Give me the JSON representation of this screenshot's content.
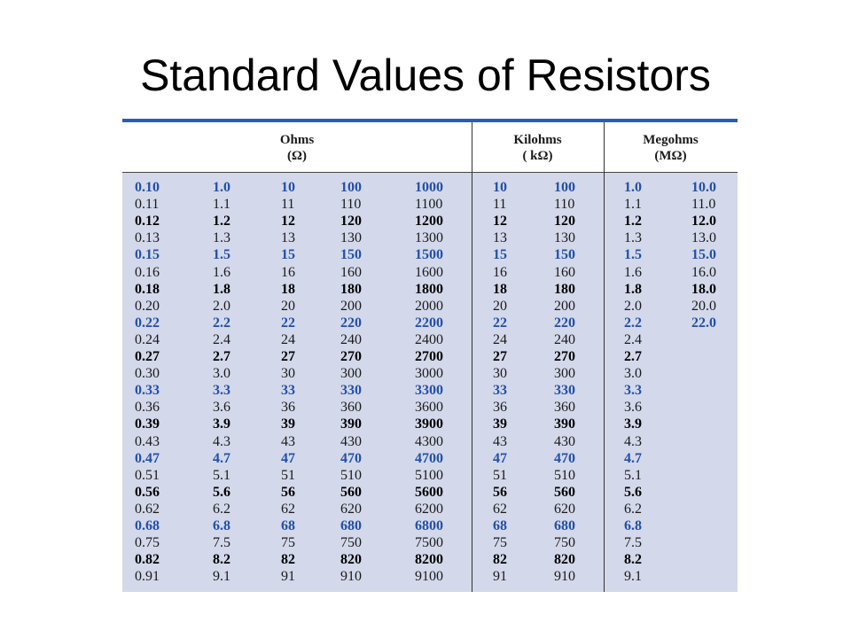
{
  "slide": {
    "title": "Standard Values of Resistors"
  },
  "table": {
    "headers": [
      {
        "name": "Ohms",
        "unit": "(Ω)"
      },
      {
        "name": "Kilohms",
        "unit": "(  kΩ)"
      },
      {
        "name": "Megohms",
        "unit": "(MΩ)"
      }
    ],
    "row_styles": [
      "blue",
      "plain",
      "bold",
      "plain",
      "blue",
      "plain",
      "bold",
      "plain",
      "blue",
      "plain",
      "bold",
      "plain",
      "blue",
      "plain",
      "bold",
      "plain",
      "blue",
      "plain",
      "bold",
      "plain",
      "blue",
      "plain",
      "bold",
      "plain"
    ],
    "rows": [
      [
        "0.10",
        "1.0",
        "10",
        "100",
        "1000",
        "10",
        "100",
        "1.0",
        "10.0"
      ],
      [
        "0.11",
        "1.1",
        "11",
        "110",
        "1100",
        "11",
        "110",
        "1.1",
        "11.0"
      ],
      [
        "0.12",
        "1.2",
        "12",
        "120",
        "1200",
        "12",
        "120",
        "1.2",
        "12.0"
      ],
      [
        "0.13",
        "1.3",
        "13",
        "130",
        "1300",
        "13",
        "130",
        "1.3",
        "13.0"
      ],
      [
        "0.15",
        "1.5",
        "15",
        "150",
        "1500",
        "15",
        "150",
        "1.5",
        "15.0"
      ],
      [
        "0.16",
        "1.6",
        "16",
        "160",
        "1600",
        "16",
        "160",
        "1.6",
        "16.0"
      ],
      [
        "0.18",
        "1.8",
        "18",
        "180",
        "1800",
        "18",
        "180",
        "1.8",
        "18.0"
      ],
      [
        "0.20",
        "2.0",
        "20",
        "200",
        "2000",
        "20",
        "200",
        "2.0",
        "20.0"
      ],
      [
        "0.22",
        "2.2",
        "22",
        "220",
        "2200",
        "22",
        "220",
        "2.2",
        "22.0"
      ],
      [
        "0.24",
        "2.4",
        "24",
        "240",
        "2400",
        "24",
        "240",
        "2.4",
        ""
      ],
      [
        "0.27",
        "2.7",
        "27",
        "270",
        "2700",
        "27",
        "270",
        "2.7",
        ""
      ],
      [
        "0.30",
        "3.0",
        "30",
        "300",
        "3000",
        "30",
        "300",
        "3.0",
        ""
      ],
      [
        "0.33",
        "3.3",
        "33",
        "330",
        "3300",
        "33",
        "330",
        "3.3",
        ""
      ],
      [
        "0.36",
        "3.6",
        "36",
        "360",
        "3600",
        "36",
        "360",
        "3.6",
        ""
      ],
      [
        "0.39",
        "3.9",
        "39",
        "390",
        "3900",
        "39",
        "390",
        "3.9",
        ""
      ],
      [
        "0.43",
        "4.3",
        "43",
        "430",
        "4300",
        "43",
        "430",
        "4.3",
        ""
      ],
      [
        "0.47",
        "4.7",
        "47",
        "470",
        "4700",
        "47",
        "470",
        "4.7",
        ""
      ],
      [
        "0.51",
        "5.1",
        "51",
        "510",
        "5100",
        "51",
        "510",
        "5.1",
        ""
      ],
      [
        "0.56",
        "5.6",
        "56",
        "560",
        "5600",
        "56",
        "560",
        "5.6",
        ""
      ],
      [
        "0.62",
        "6.2",
        "62",
        "620",
        "6200",
        "62",
        "620",
        "6.2",
        ""
      ],
      [
        "0.68",
        "6.8",
        "68",
        "680",
        "6800",
        "68",
        "680",
        "6.8",
        ""
      ],
      [
        "0.75",
        "7.5",
        "75",
        "750",
        "7500",
        "75",
        "750",
        "7.5",
        ""
      ],
      [
        "0.82",
        "8.2",
        "82",
        "820",
        "8200",
        "82",
        "820",
        "8.2",
        ""
      ],
      [
        "0.91",
        "9.1",
        "91",
        "910",
        "9100",
        "91",
        "910",
        "9.1",
        ""
      ]
    ]
  },
  "colors": {
    "accent_blue": "#2150a8",
    "top_rule": "#2a5db0",
    "body_background": "#d3d8ea"
  }
}
